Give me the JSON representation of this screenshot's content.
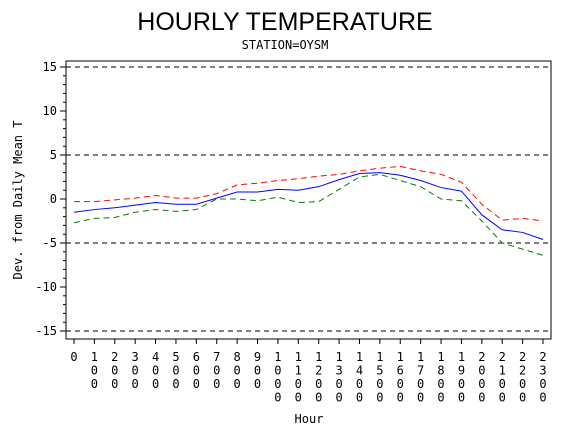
{
  "chart_data": {
    "type": "line",
    "title": "HOURLY TEMPERATURE",
    "subtitle": "STATION=OYSM",
    "xlabel": "Hour",
    "ylabel": "Dev. from Daily Mean T",
    "xlim": [
      0,
      23
    ],
    "ylim": [
      -15,
      15
    ],
    "yticks": [
      -15,
      -10,
      -5,
      0,
      5,
      10,
      15
    ],
    "x": [
      0,
      1,
      2,
      3,
      4,
      5,
      6,
      7,
      8,
      9,
      10,
      11,
      12,
      13,
      14,
      15,
      16,
      17,
      18,
      19,
      20,
      21,
      22,
      23
    ],
    "x_tick_labels": [
      "0",
      "100",
      "200",
      "300",
      "400",
      "500",
      "600",
      "700",
      "800",
      "900",
      "1000",
      "1100",
      "1200",
      "1300",
      "1400",
      "1500",
      "1600",
      "1700",
      "1800",
      "1900",
      "2000",
      "2100",
      "2200",
      "2300"
    ],
    "reference_lines": [
      -15,
      -5,
      5,
      15
    ],
    "grid": false,
    "series": [
      {
        "color": "#ff0000",
        "style": "dashed",
        "values": [
          -0.3,
          -0.3,
          -0.1,
          0.1,
          0.4,
          0.1,
          0.1,
          0.6,
          1.6,
          1.8,
          2.1,
          2.3,
          2.6,
          2.8,
          3.2,
          3.5,
          3.7,
          3.2,
          2.8,
          1.9,
          -0.6,
          -2.4,
          -2.2,
          -2.5
        ]
      },
      {
        "color": "#0000ff",
        "style": "solid",
        "values": [
          -1.5,
          -1.2,
          -1.0,
          -0.7,
          -0.4,
          -0.6,
          -0.6,
          0.1,
          0.8,
          0.8,
          1.1,
          1.0,
          1.4,
          2.2,
          2.9,
          3.0,
          2.7,
          2.1,
          1.3,
          0.9,
          -1.8,
          -3.5,
          -3.8,
          -4.6
        ]
      },
      {
        "color": "#008000",
        "style": "dashed",
        "values": [
          -2.7,
          -2.2,
          -2.1,
          -1.5,
          -1.2,
          -1.4,
          -1.2,
          0.0,
          0.0,
          -0.2,
          0.2,
          -0.4,
          -0.3,
          1.1,
          2.5,
          2.8,
          2.1,
          1.4,
          0.0,
          -0.2,
          -2.5,
          -5.0,
          -5.7,
          -6.4
        ]
      }
    ]
  }
}
